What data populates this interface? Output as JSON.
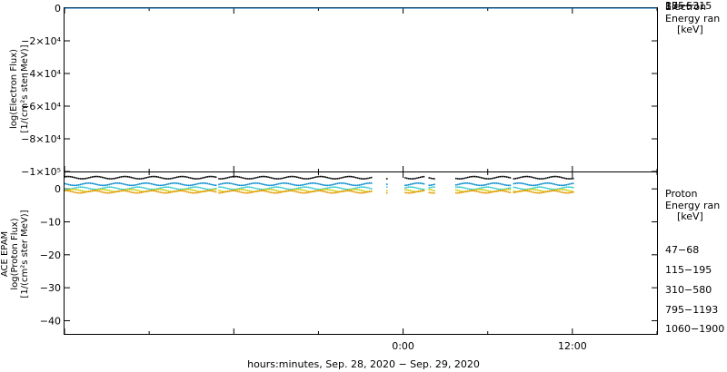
{
  "chart_data": [
    {
      "type": "line",
      "panel": "electron",
      "ylabel_lines": [
        "log(Electron Flux)",
        "[1/(cm²s ster MeV)]"
      ],
      "ylim": [
        -100000,
        0
      ],
      "yticks": [
        {
          "value": 0,
          "label": "0"
        },
        {
          "value": -20000,
          "label": "−2×10⁴"
        },
        {
          "value": -40000,
          "label": "−4×10⁴"
        },
        {
          "value": -60000,
          "label": "−6×10⁴"
        },
        {
          "value": -80000,
          "label": "−8×10⁴"
        },
        {
          "value": -100000,
          "label": "−1×10⁵"
        }
      ],
      "legend_title": [
        "Electron",
        "Energy ran",
        "[keV]"
      ],
      "series": [
        {
          "name": "38−53",
          "color": "#000000",
          "value": 0
        },
        {
          "name": "175−315",
          "color": "#0070c0",
          "value": 0
        }
      ]
    },
    {
      "type": "scatter",
      "panel": "proton",
      "ylabel_lines": [
        "ACE EPAM",
        "log(Proton Flux)",
        "[1/(cm²s ster MeV)]"
      ],
      "ylim": [
        -44,
        5
      ],
      "yticks": [
        {
          "value": 0,
          "label": "0"
        },
        {
          "value": -10,
          "label": "−10"
        },
        {
          "value": -20,
          "label": "−20"
        },
        {
          "value": -30,
          "label": "−30"
        },
        {
          "value": -40,
          "label": "−40"
        }
      ],
      "legend_title": [
        "Proton",
        "Energy ran",
        "[keV]"
      ],
      "series": [
        {
          "name": "47−68",
          "color": "#000000",
          "level": 3.4
        },
        {
          "name": "115−195",
          "color": "#0088cc",
          "level": 1.4
        },
        {
          "name": "310−580",
          "color": "#33cccc",
          "level": 0.2
        },
        {
          "name": "795−1193",
          "color": "#cccc00",
          "level": -0.5
        },
        {
          "name": "1060−1900",
          "color": "#e69500",
          "level": -0.9
        }
      ],
      "data_segments_hours": [
        [
          -24.0,
          -13.3
        ],
        [
          -13.1,
          -2.3
        ],
        [
          -1.2,
          -1.1
        ],
        [
          0.1,
          1.5
        ],
        [
          1.8,
          2.2
        ],
        [
          3.7,
          7.6
        ],
        [
          7.8,
          12.0
        ]
      ]
    }
  ],
  "xaxis": {
    "label": "hours:minutes, Sep. 28, 2020 − Sep. 29, 2020",
    "range_hours": [
      -24,
      18
    ],
    "ticks": [
      {
        "hours": 0,
        "label": "0:00"
      },
      {
        "hours": 12,
        "label": "12:00"
      }
    ]
  }
}
